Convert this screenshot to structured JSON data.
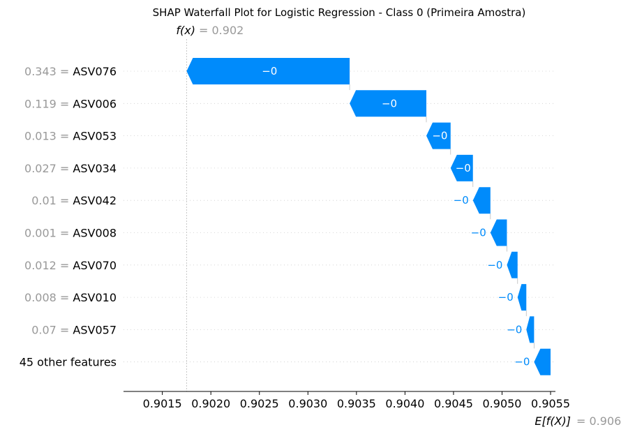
{
  "chart_data": {
    "type": "waterfall",
    "title": "SHAP Waterfall Plot for Logistic Regression - Class 0 (Primeira Amostra)",
    "fx": {
      "label": "f(x)",
      "value_text": "= 0.902",
      "value": 0.90175
    },
    "efx": {
      "label": "E[f(X)]",
      "value_text": "= 0.906",
      "value": 0.9055
    },
    "bar_color": "#008bfb",
    "grid_color": "#cccccc",
    "xlim": [
      0.9011,
      0.90555
    ],
    "xticks": [
      0.9015,
      0.902,
      0.9025,
      0.903,
      0.9035,
      0.904,
      0.9045,
      0.905,
      0.9055
    ],
    "xtick_labels": [
      "0.9015",
      "0.9020",
      "0.9025",
      "0.9030",
      "0.9035",
      "0.9040",
      "0.9045",
      "0.9050",
      "0.9055"
    ],
    "features": [
      {
        "value_text": "0.343 =",
        "name": "ASV076",
        "start": 0.90343,
        "end": 0.90175,
        "label": "−0"
      },
      {
        "value_text": "0.119 =",
        "name": "ASV006",
        "start": 0.90422,
        "end": 0.90343,
        "label": "−0"
      },
      {
        "value_text": "0.013 =",
        "name": "ASV053",
        "start": 0.90447,
        "end": 0.90422,
        "label": "−0"
      },
      {
        "value_text": "0.027 =",
        "name": "ASV034",
        "start": 0.9047,
        "end": 0.90447,
        "label": "−0"
      },
      {
        "value_text": "0.01 =",
        "name": "ASV042",
        "start": 0.90488,
        "end": 0.9047,
        "label": "−0"
      },
      {
        "value_text": "0.001 =",
        "name": "ASV008",
        "start": 0.90505,
        "end": 0.90488,
        "label": "−0"
      },
      {
        "value_text": "0.012 =",
        "name": "ASV070",
        "start": 0.90516,
        "end": 0.90505,
        "label": "−0"
      },
      {
        "value_text": "0.008 =",
        "name": "ASV010",
        "start": 0.90525,
        "end": 0.90516,
        "label": "−0"
      },
      {
        "value_text": "0.07 =",
        "name": "ASV057",
        "start": 0.90533,
        "end": 0.90525,
        "label": "−0"
      },
      {
        "value_text": "",
        "name": "45 other features",
        "start": 0.9055,
        "end": 0.90533,
        "label": "−0"
      }
    ]
  }
}
